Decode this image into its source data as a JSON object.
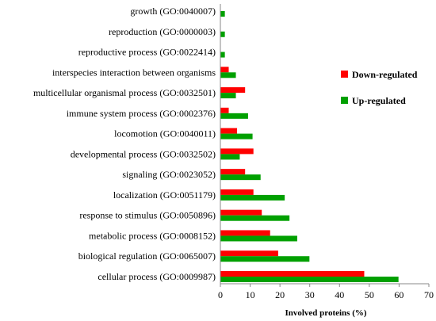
{
  "chart_data": {
    "type": "bar",
    "orientation": "horizontal",
    "categories": [
      "growth (GO:0040007)",
      "reproduction (GO:0000003)",
      "reproductive process (GO:0022414)",
      "interspecies interaction between organisms",
      "multicellular organismal process (GO:0032501)",
      "immune system process (GO:0002376)",
      "locomotion (GO:0040011)",
      "developmental process (GO:0032502)",
      "signaling (GO:0023052)",
      "localization (GO:0051179)",
      "response to stimulus (GO:0050896)",
      "metabolic process (GO:0008152)",
      "biological regulation (GO:0065007)",
      "cellular process (GO:0009987)"
    ],
    "series": [
      {
        "name": "Down-regulated",
        "color": "#ff0000",
        "values": [
          0,
          0,
          0,
          2.8,
          8.3,
          2.8,
          5.6,
          11.1,
          8.3,
          11.1,
          13.9,
          16.7,
          19.4,
          48.3
        ]
      },
      {
        "name": "Up-regulated",
        "color": "#00a000",
        "values": [
          1.5,
          1.5,
          1.5,
          5.2,
          5.2,
          9.3,
          10.8,
          6.5,
          13.5,
          21.6,
          23.2,
          25.8,
          29.9,
          59.8
        ]
      }
    ],
    "xlabel": "Involved proteins (%)",
    "xlim": [
      0,
      70
    ],
    "xticks": [
      "0",
      "10",
      "20",
      "30",
      "40",
      "50",
      "60",
      "70"
    ],
    "grid": false,
    "legend_position": "right"
  }
}
